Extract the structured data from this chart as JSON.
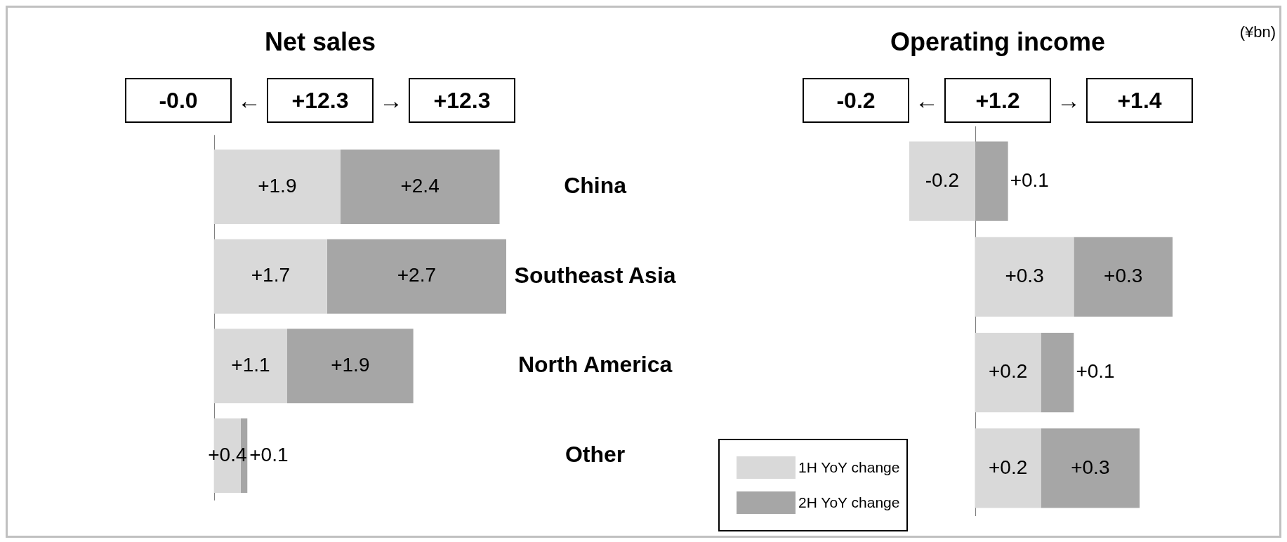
{
  "chart_data": [
    {
      "type": "bar",
      "orientation": "horizontal",
      "stacked": true,
      "title": "Net sales",
      "annotations": [
        "-0.0",
        "←",
        "+12.3",
        "→",
        "+12.3"
      ],
      "categories": [
        "China",
        "Southeast Asia",
        "North America",
        "Other"
      ],
      "tick_labels": "y",
      "series": [
        {
          "color": "#d9d9d9",
          "values": [
            1.9,
            1.7,
            1.1,
            0.4
          ],
          "value_labels": [
            "+1.9",
            "+1.7",
            "+1.1",
            "+0.4"
          ]
        },
        {
          "color": "#a6a6a6",
          "values": [
            2.4,
            2.7,
            1.9,
            0.1
          ],
          "value_labels": [
            "+2.4",
            "+2.7",
            "+1.9",
            "+0.1"
          ]
        }
      ]
    },
    {
      "type": "bar",
      "orientation": "horizontal",
      "stacked": true,
      "title": "Operating income",
      "annotations": [
        "-0.2",
        "←",
        "+1.2",
        "→",
        "+1.4",
        "(¥bn)"
      ],
      "categories": [
        null,
        null,
        null,
        null
      ],
      "tick_labels": false,
      "legend": "bottom left",
      "series": [
        {
          "name": "1H YoY change",
          "color": "#d9d9d9",
          "values": [
            -0.2,
            0.3,
            0.2,
            0.2
          ],
          "value_labels": [
            "-0.2",
            "+0.3",
            "+0.2",
            "+0.2"
          ]
        },
        {
          "name": "2H YoY change",
          "color": "#a6a6a6",
          "values": [
            0.1,
            0.3,
            0.1,
            0.3
          ],
          "value_labels": [
            "+0.1",
            "+0.3",
            "+0.1",
            "+0.3"
          ]
        }
      ]
    }
  ]
}
